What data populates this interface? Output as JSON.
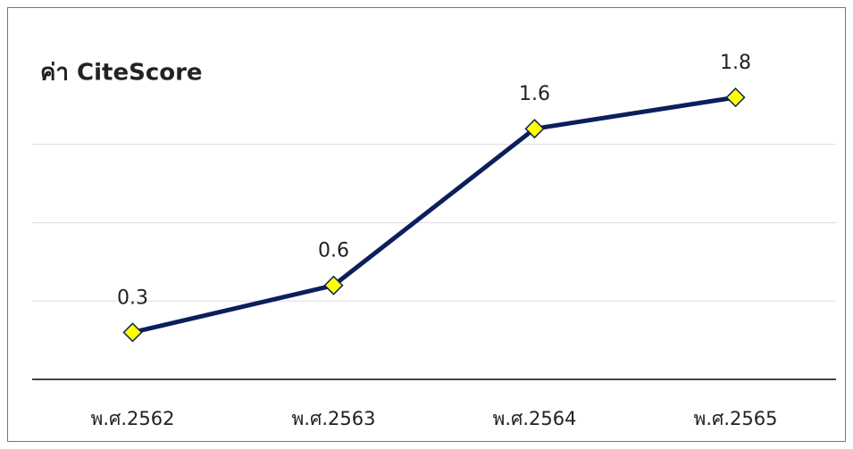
{
  "chart_data": {
    "type": "line",
    "title": "ค่า CiteScore",
    "categories": [
      "พ.ศ.2562",
      "พ.ศ.2563",
      "พ.ศ.2564",
      "พ.ศ.2565"
    ],
    "series": [
      {
        "name": "ค่า CiteScore",
        "color": "#0b1f5c",
        "values": [
          0.3,
          0.6,
          1.6,
          1.8
        ]
      }
    ],
    "ylim": [
      0,
      2
    ],
    "yticks": [
      0,
      0.5,
      1,
      1.5
    ],
    "grid": true,
    "marker_color": "#ffff00"
  }
}
